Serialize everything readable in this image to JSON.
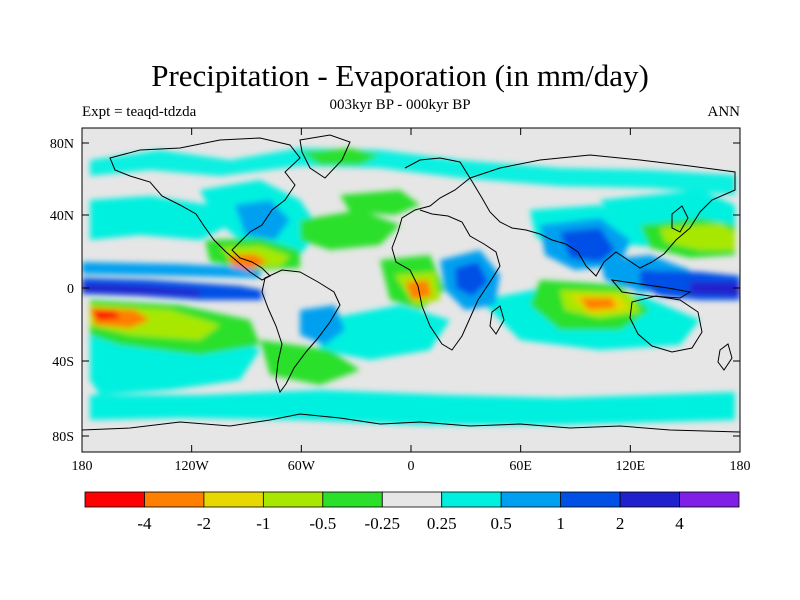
{
  "header": {
    "title": "Precipitation - Evaporation (in mm/day)",
    "subtitle": "003kyr BP - 000kyr BP",
    "left_label": "Expt = teaqd-tdzda",
    "right_label": "ANN"
  },
  "map": {
    "projection": "cylindrical-equidistant",
    "lat_ticks": [
      "80N",
      "40N",
      "0",
      "40S",
      "80S"
    ],
    "lon_ticks": [
      "180",
      "120W",
      "60W",
      "0",
      "60E",
      "120E",
      "180"
    ],
    "background_color": "#e6e6e6",
    "coast_color": "#000000"
  },
  "colorbar": {
    "colors": [
      "#ff0000",
      "#ff7f00",
      "#e6d800",
      "#a8e800",
      "#2be02b",
      "#e6e6e6",
      "#00f0e0",
      "#00a0f0",
      "#0050e6",
      "#2020cc",
      "#8020e6"
    ],
    "labels": [
      "-4",
      "-2",
      "-1",
      "-0.5",
      "-0.25",
      "0.25",
      "0.5",
      "1",
      "2",
      "4"
    ]
  }
}
